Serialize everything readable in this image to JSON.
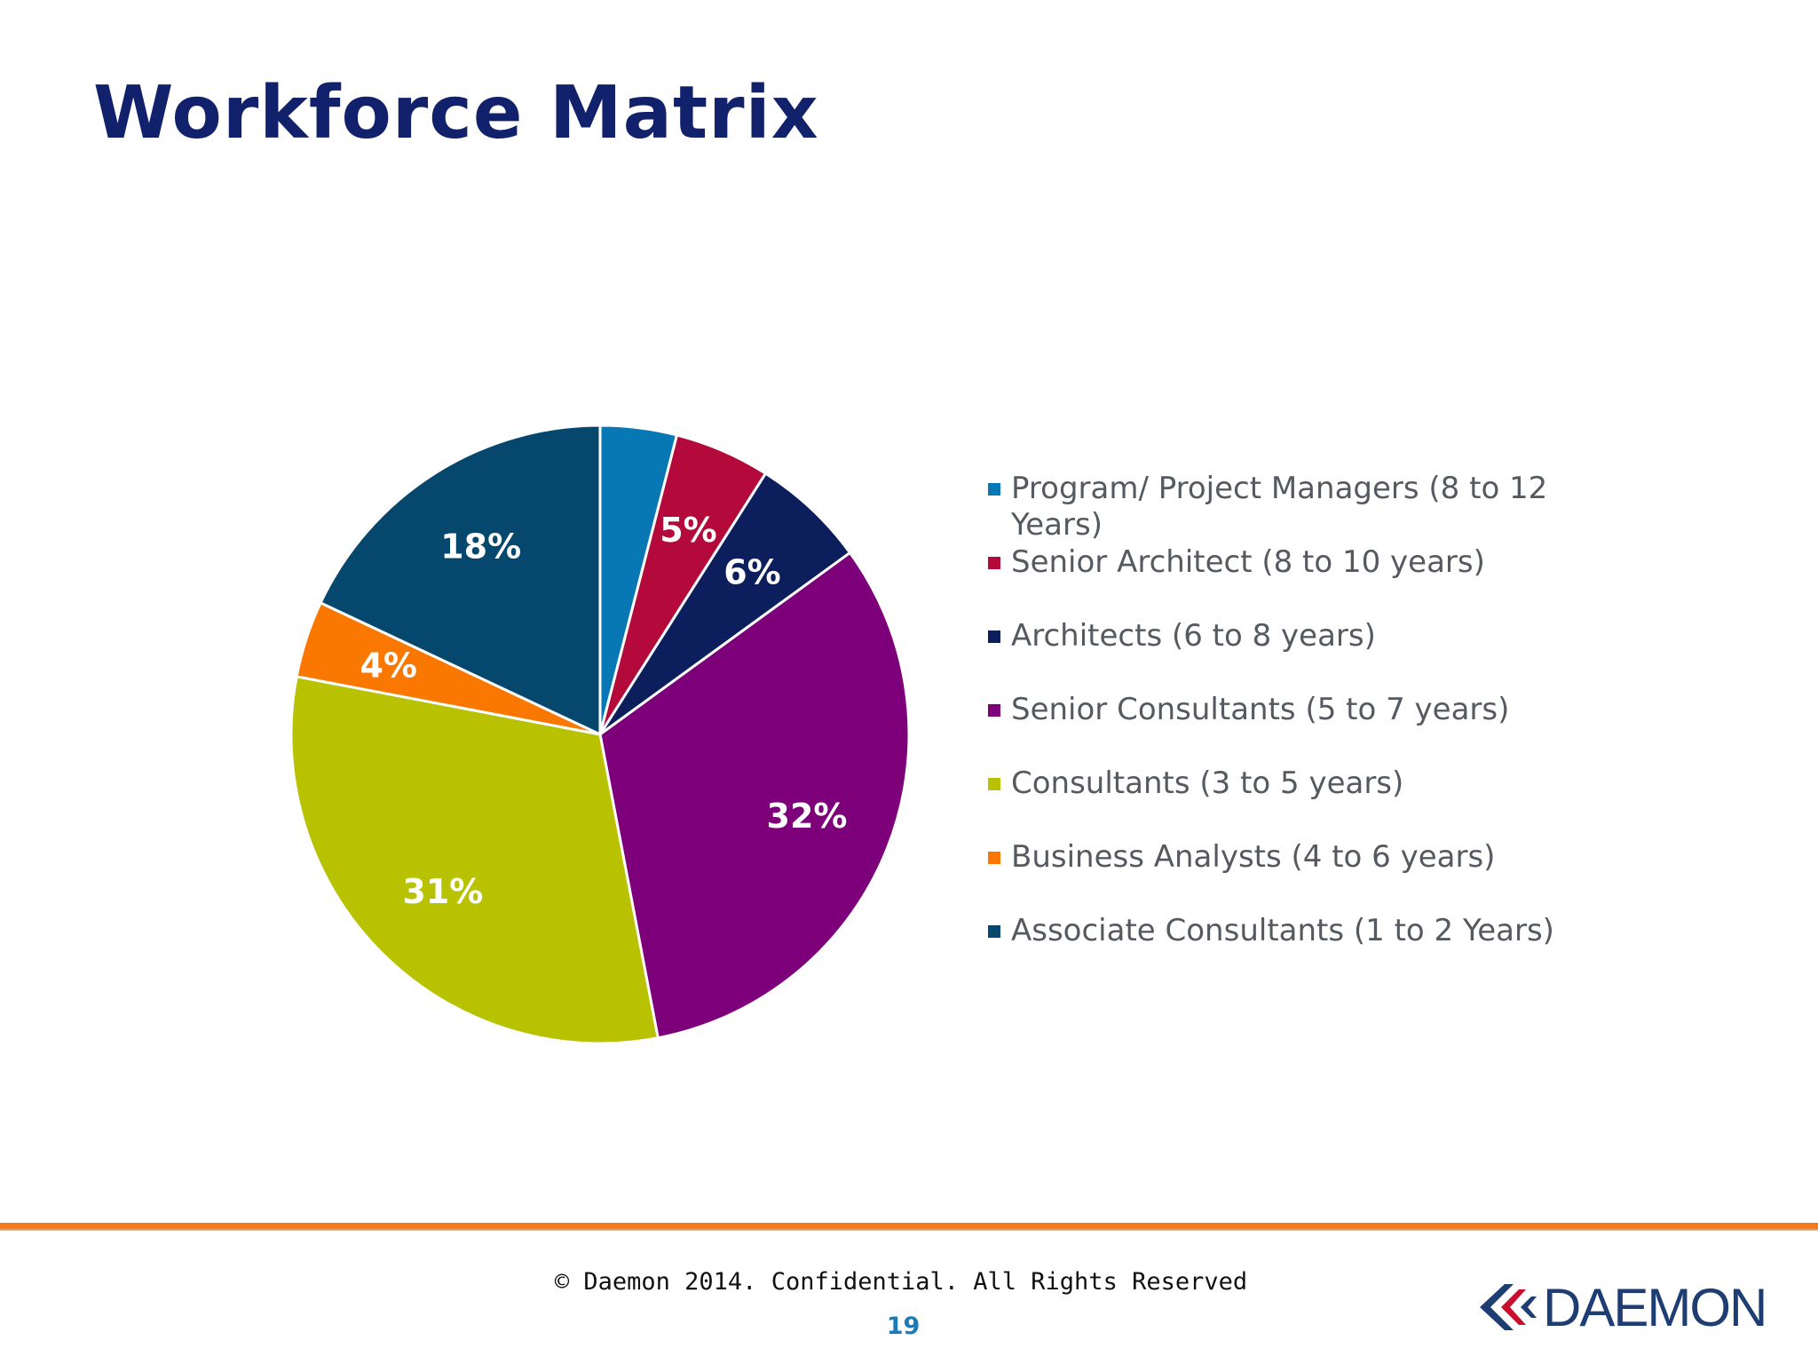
{
  "slide": {
    "title": "Workforce Matrix",
    "footer_text": "© Daemon 2014. Confidential. All Rights Reserved",
    "page_number": "19",
    "logo_text": "DAEMON",
    "accent_color": "#f37a1f"
  },
  "chart_data": {
    "type": "pie",
    "title": "",
    "legend_position": "right",
    "start_angle_deg": 0,
    "direction": "clockwise",
    "slices": [
      {
        "label": "Program/ Project Managers (8 to 12 Years)",
        "value": 4,
        "data_label": "",
        "color": "#0878b5"
      },
      {
        "label": "Senior Architect (8 to 10 years)",
        "value": 5,
        "data_label": "5%",
        "color": "#b3093b"
      },
      {
        "label": "Architects (6 to 8 years)",
        "value": 6,
        "data_label": "6%",
        "color": "#0c1f5c"
      },
      {
        "label": "Senior Consultants (5 to 7 years)",
        "value": 32,
        "data_label": "32%",
        "color": "#7d007a"
      },
      {
        "label": "Consultants (3 to 5 years)",
        "value": 31,
        "data_label": "31%",
        "color": "#b8c200"
      },
      {
        "label": "Business Analysts (4 to 6 years)",
        "value": 4,
        "data_label": "4%",
        "color": "#fb7800"
      },
      {
        "label": "Associate Consultants (1 to 2 Years)",
        "value": 18,
        "data_label": "18%",
        "color": "#06476e"
      }
    ]
  }
}
